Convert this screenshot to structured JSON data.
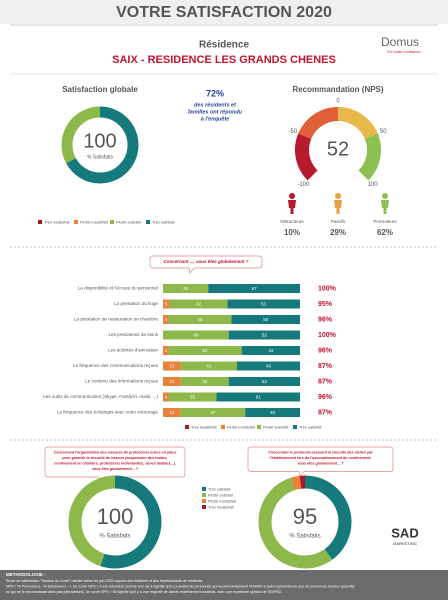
{
  "header": {
    "title": "VOTRE SATISFACTION 2020",
    "subtitle": "Résidence",
    "residence": "SAIX - RESIDENCE LES GRANDS CHENES",
    "logo": "Domus",
    "logo_tagline": "En toute confiance"
  },
  "legend": [
    "Très insatisfait",
    "Plutôt insatisfait",
    "Plutôt satisfait",
    "Très satisfait"
  ],
  "colors": [
    "#a8182a",
    "#e8813a",
    "#8db84a",
    "#167a7c"
  ],
  "global": {
    "title": "Satisfaction globale",
    "values": [
      0,
      0,
      33,
      67
    ],
    "center": 100,
    "center_label": "% Satisfaits"
  },
  "response": {
    "rate": "72%",
    "lines": [
      "des résidents et",
      "familles ont répondu",
      "à l'enquête"
    ]
  },
  "nps": {
    "title": "Recommandation (NPS)",
    "value": 52,
    "range": [
      -100,
      100
    ],
    "ticks": [
      -100,
      -50,
      0,
      50,
      100
    ],
    "groups": [
      {
        "name": "Détracteurs",
        "value": "10%"
      },
      {
        "name": "Passifs",
        "value": "29%"
      },
      {
        "name": "Promoteurs",
        "value": "62%"
      }
    ]
  },
  "questions": {
    "prompt": "Concernant ..., vous êtes globalement ?",
    "rows": [
      {
        "label": "La disponibilité et l'écoute du personnel",
        "values": [
          0,
          0,
          33,
          67
        ],
        "total": "100%"
      },
      {
        "label": "La prestation du linge",
        "values": [
          0,
          5,
          42,
          53
        ],
        "total": "95%"
      },
      {
        "label": "La prestation de restauration en chambre",
        "values": [
          0,
          4,
          46,
          50
        ],
        "total": "96%"
      },
      {
        "label": "Les prestations de soins",
        "values": [
          0,
          0,
          48,
          52
        ],
        "total": "100%"
      },
      {
        "label": "Les activités d'animation",
        "values": [
          0,
          4,
          54,
          43
        ],
        "total": "96%"
      },
      {
        "label": "La fréquence des communications reçues",
        "values": [
          0,
          13,
          41,
          46
        ],
        "total": "87%"
      },
      {
        "label": "Le contenu des informations reçues",
        "values": [
          0,
          13,
          35,
          52
        ],
        "total": "87%"
      },
      {
        "label": "Les outils de communication (Skype, FamilyVi, mails, ...)",
        "values": [
          0,
          4,
          35,
          61
        ],
        "total": "96%"
      },
      {
        "label": "La fréquence des échanges avec votre entourage",
        "values": [
          0,
          13,
          47,
          40
        ],
        "total": "87%"
      }
    ]
  },
  "covid": [
    {
      "lines": [
        "Concernant l'organisation des mesures de protections mises en place",
        "pour garantir la sécurité de chacun (suspension des visites,",
        "confinement en chambre, protections individuelles, zones dédiées...),",
        "vous êtes globalement... ?"
      ],
      "values": [
        0,
        0,
        45,
        55
      ],
      "center": 100,
      "center_label": "% Satisfaits"
    },
    {
      "lines": [
        "Concernant le protocole assurant la sécurité des visites par",
        "l'établissement lors de l'assouplissement du confinement,",
        "vous êtes globalement... ?"
      ],
      "values": [
        2,
        3,
        55,
        40
      ],
      "center": 95,
      "center_label": "% Satisfaits"
    }
  ],
  "sad": {
    "name": "SAD",
    "sub": "MARKETING"
  },
  "footer": {
    "heading": "METHODOLOGIE :",
    "lines": [
      "Etude de satisfaction \"Gestion du Covid\" menée online en juin 2020 auprès des résidents et des représentants de résidents.",
      "NPS = % Promoteurs - % Détracteurs --> Un score NPS > 0 est considéré comme bon car il signifie qu'il y a autant de personnes qui recommanderaient l'EHPAD à autrui (promoteurs) que de personnes neutres (passifs)",
      "ou qui ne le recommanderaient pas (détracteurs). Un score NPS > 50 signifie qu'il y a une majorité de clients extrêmement contents, avec une excellente opinion de l'EHPAD."
    ]
  }
}
